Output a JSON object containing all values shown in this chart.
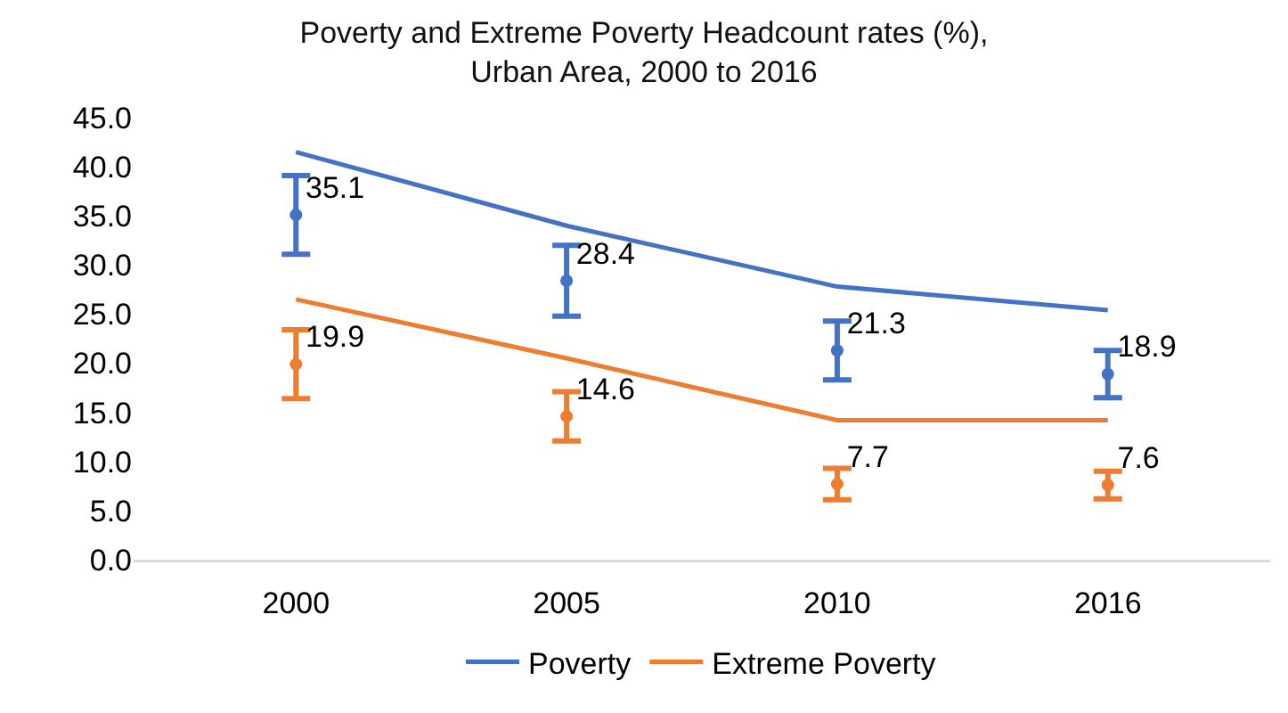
{
  "chart_data": {
    "type": "line",
    "title": "Poverty and Extreme Poverty Headcount rates (%),\nUrban Area, 2000 to 2016",
    "categories": [
      "2000",
      "2005",
      "2010",
      "2016"
    ],
    "ylim": [
      0,
      45
    ],
    "yticks": [
      {
        "value": 0,
        "label": "0.0"
      },
      {
        "value": 5,
        "label": "5.0"
      },
      {
        "value": 10,
        "label": "10.0"
      },
      {
        "value": 15,
        "label": "15.0"
      },
      {
        "value": 20,
        "label": "20.0"
      },
      {
        "value": 25,
        "label": "25.0"
      },
      {
        "value": 30,
        "label": "30.0"
      },
      {
        "value": 35,
        "label": "35.0"
      },
      {
        "value": 40,
        "label": "40.0"
      },
      {
        "value": 45,
        "label": "45.0"
      }
    ],
    "grid": false,
    "legend": "bottom",
    "marker": "none",
    "series": [
      {
        "name": "Poverty",
        "color": "#4472c4",
        "values": [
          41.5,
          34.0,
          27.8,
          25.4
        ]
      },
      {
        "name": "Extreme Poverty",
        "color": "#ed7d31",
        "values": [
          26.5,
          20.5,
          14.2,
          14.2
        ]
      },
      {
        "type": "scatter",
        "marker": "circle",
        "color": "#4472c4",
        "values": [
          35.1,
          28.4,
          21.3,
          18.9
        ],
        "value_labels": [
          "35.1",
          "28.4",
          "21.3",
          "18.9"
        ],
        "errors": [
          4.0,
          3.6,
          3.0,
          2.4
        ]
      },
      {
        "type": "scatter",
        "marker": "circle",
        "color": "#ed7d31",
        "values": [
          19.9,
          14.6,
          7.7,
          7.6
        ],
        "value_labels": [
          "19.9",
          "14.6",
          "7.7",
          "7.6"
        ],
        "errors": [
          3.5,
          2.5,
          1.6,
          1.4
        ]
      }
    ]
  }
}
